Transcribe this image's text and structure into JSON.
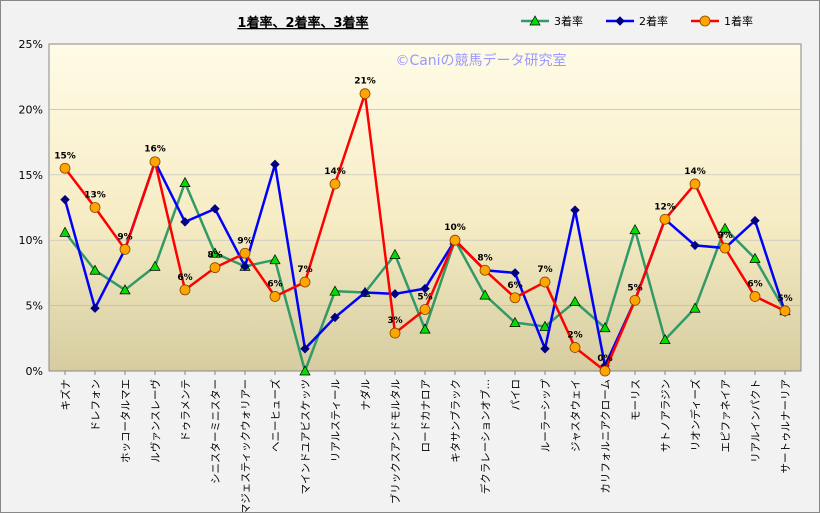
{
  "chart_data": {
    "type": "line",
    "title": "1着率、2着率、3着率",
    "watermark": "©Caniの競馬データ研究室",
    "ylim": [
      0,
      25
    ],
    "yticks": [
      "0%",
      "5%",
      "10%",
      "15%",
      "20%",
      "25%"
    ],
    "legend_position": "top-right",
    "categories": [
      "キズナ",
      "ドレフォン",
      "ホッコータルマエ",
      "ルヴァンスレーヴ",
      "ドゥラメンテ",
      "シニスターミニスター",
      "マジェスティックウォリアー",
      "ヘニーヒューズ",
      "マインドユアビスケッツ",
      "リアルスティール",
      "ナダル",
      "ブリックスアンドモルタル",
      "ロードカナロア",
      "キタサンブラック",
      "デクラレーションオブ…",
      "パイロ",
      "ルーラーシップ",
      "ジャスタウェイ",
      "カリフォルニアクローム",
      "モーリス",
      "サトノアラジン",
      "リオンディーズ",
      "エピファネイア",
      "リアルインパクト",
      "サートゥルナーリア"
    ],
    "series": [
      {
        "name": "3着率",
        "color": "#339966",
        "marker": "triangle",
        "values": [
          10.6,
          7.7,
          6.2,
          8.0,
          14.4,
          9.0,
          8.0,
          8.5,
          0,
          6.1,
          6.0,
          8.9,
          3.2,
          10.0,
          5.8,
          3.7,
          3.4,
          5.3,
          3.3,
          10.8,
          2.4,
          4.8,
          10.9,
          8.6,
          4.6
        ]
      },
      {
        "name": "2着率",
        "color": "#0000ff",
        "marker": "diamond",
        "values": [
          13.1,
          4.8,
          9.3,
          16.0,
          11.4,
          12.4,
          8.0,
          15.8,
          1.7,
          4.1,
          6.0,
          5.9,
          6.3,
          10.0,
          7.7,
          7.5,
          1.7,
          12.3,
          0.4,
          5.4,
          11.6,
          9.6,
          9.4,
          11.5,
          4.5
        ]
      },
      {
        "name": "1着率",
        "color": "#ff0000",
        "marker": "circle",
        "values": [
          15.5,
          12.5,
          9.3,
          16.0,
          6.2,
          7.9,
          9.0,
          5.7,
          6.8,
          14.3,
          21.2,
          2.9,
          4.7,
          10.0,
          7.7,
          5.6,
          6.8,
          1.8,
          0,
          5.4,
          11.6,
          14.3,
          9.4,
          5.7,
          4.6
        ],
        "labels": [
          "15%",
          "13%",
          "9%",
          "16%",
          "6%",
          "8%",
          "9%",
          "6%",
          "7%",
          "14%",
          "21%",
          "3%",
          "5%",
          "10%",
          "8%",
          "6%",
          "7%",
          "2%",
          "0%",
          "5%",
          "12%",
          "14%",
          "9%",
          "6%",
          "5%"
        ]
      }
    ]
  }
}
